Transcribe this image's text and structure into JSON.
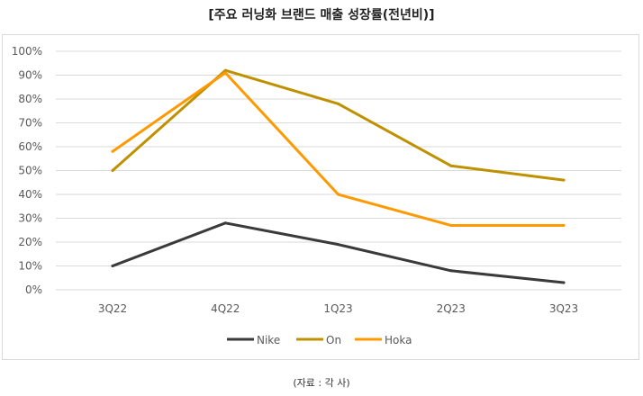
{
  "header": {
    "title": "[주요 러닝화 브랜드 매출 성장률(전년비)]"
  },
  "footer": {
    "source": "(자료 : 각 사)"
  },
  "chart_data": {
    "type": "line",
    "title": "[주요 러닝화 브랜드 매출 성장률(전년비)]",
    "categories": [
      "3Q22",
      "4Q22",
      "1Q23",
      "2Q23",
      "3Q23"
    ],
    "yticks": [
      "0%",
      "10%",
      "20%",
      "30%",
      "40%",
      "50%",
      "60%",
      "70%",
      "80%",
      "90%",
      "100%"
    ],
    "ylim": [
      0,
      100
    ],
    "grid": true,
    "legend": "bottom",
    "series": [
      {
        "name": "Nike",
        "color": "#3a3a3a",
        "values": [
          10,
          28,
          19,
          8,
          3
        ]
      },
      {
        "name": "On",
        "color": "#bf9000",
        "values": [
          50,
          92,
          78,
          52,
          46
        ]
      },
      {
        "name": "Hoka",
        "color": "#ff9900",
        "values": [
          58,
          91,
          40,
          27,
          27
        ]
      }
    ]
  }
}
